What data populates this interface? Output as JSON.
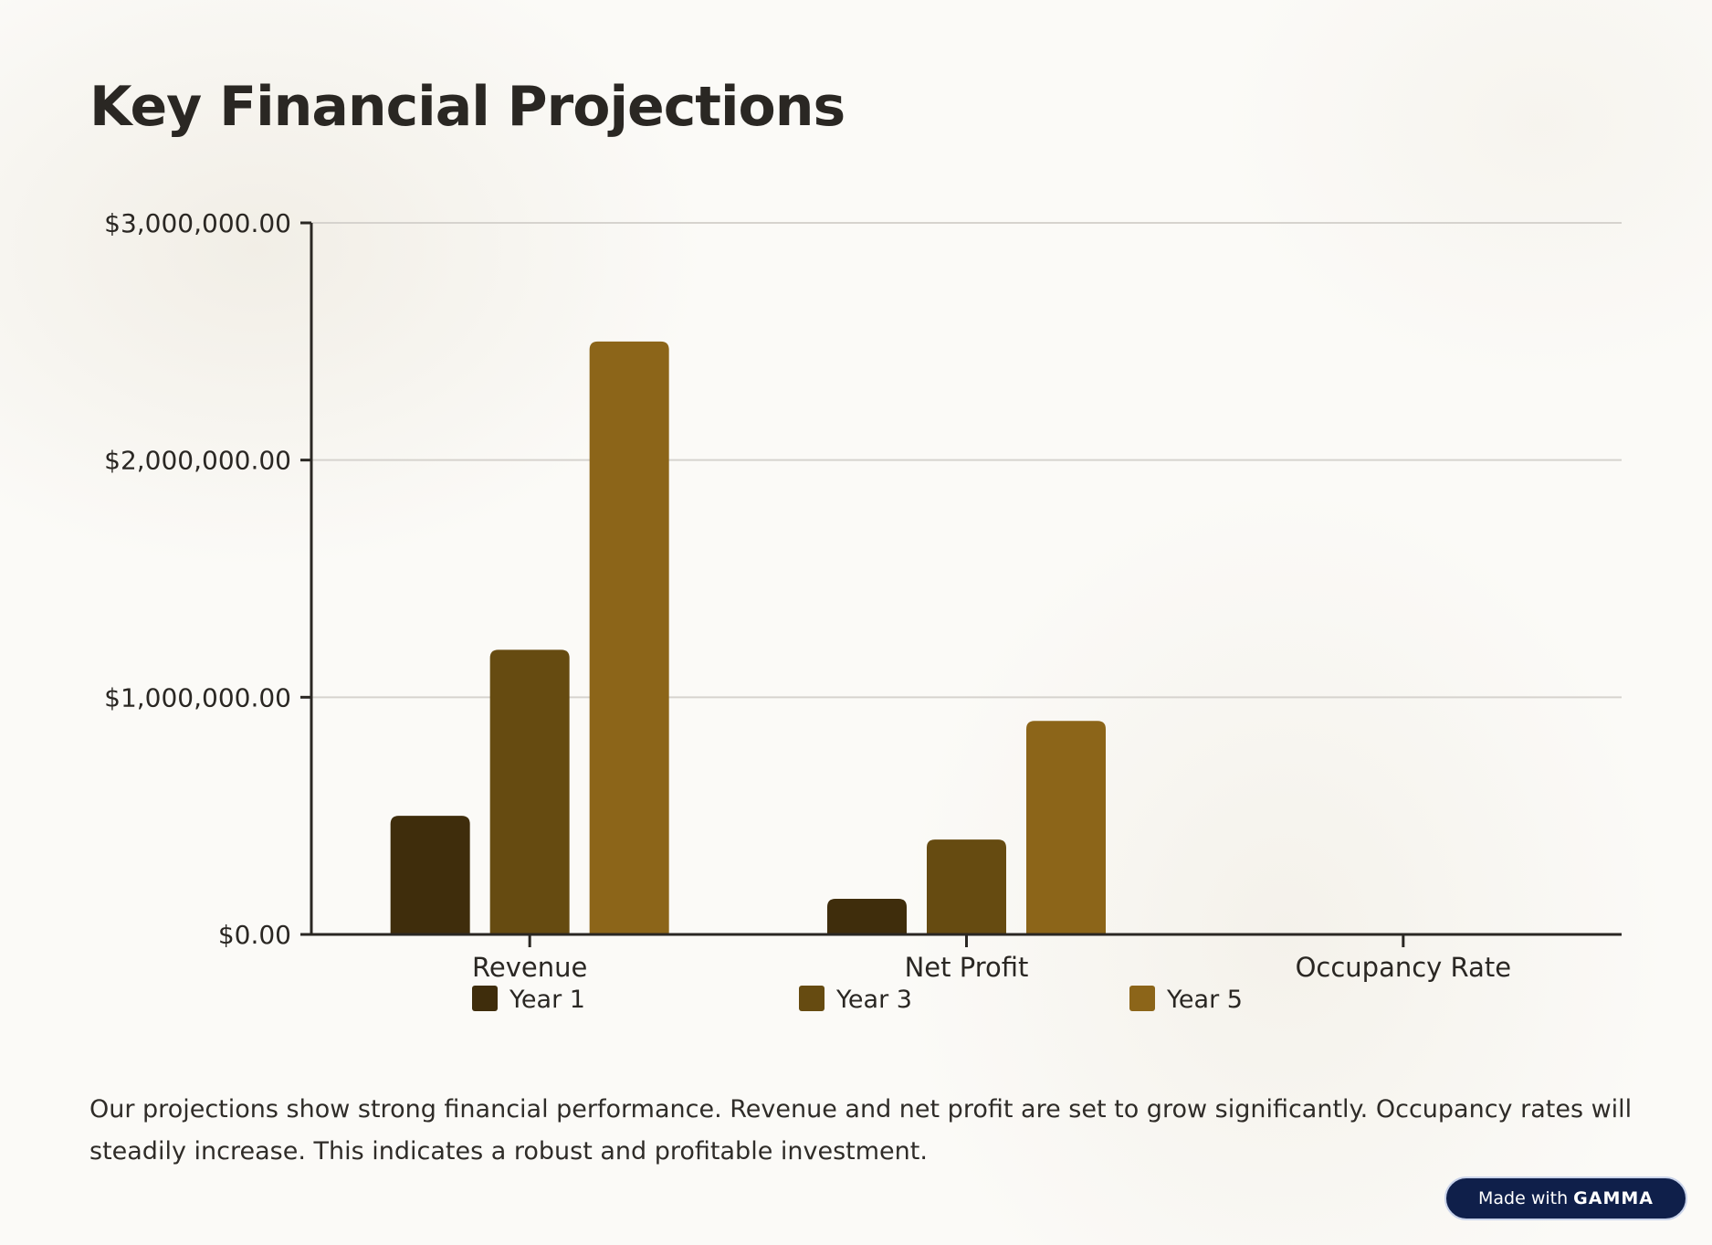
{
  "page": {
    "title": "Key Financial Projections",
    "caption": "Our projections show strong financial performance. Revenue and net profit are set to grow significantly. Occupancy rates will steadily increase. This indicates a robust and profitable investment.",
    "badge": {
      "prefix": "Made with",
      "brand": "GAMMA"
    }
  },
  "chart_data": {
    "type": "bar",
    "title": "",
    "xlabel": "",
    "ylabel": "",
    "categories": [
      "Revenue",
      "Net Profit",
      "Occupancy Rate"
    ],
    "series": [
      {
        "name": "Year 1",
        "values": [
          500000,
          150000,
          0
        ],
        "color": "#3f2d0c"
      },
      {
        "name": "Year 3",
        "values": [
          1200000,
          400000,
          0
        ],
        "color": "#664b11"
      },
      {
        "name": "Year 5",
        "values": [
          2500000,
          900000,
          0
        ],
        "color": "#8c6519"
      }
    ],
    "ylim": [
      0,
      3000000
    ],
    "yticks": [
      0,
      1000000,
      2000000,
      3000000
    ],
    "ytick_labels": [
      "$0.00",
      "$1,000,000.00",
      "$2,000,000.00",
      "$3,000,000.00"
    ],
    "grid": true,
    "legend_position": "bottom"
  }
}
